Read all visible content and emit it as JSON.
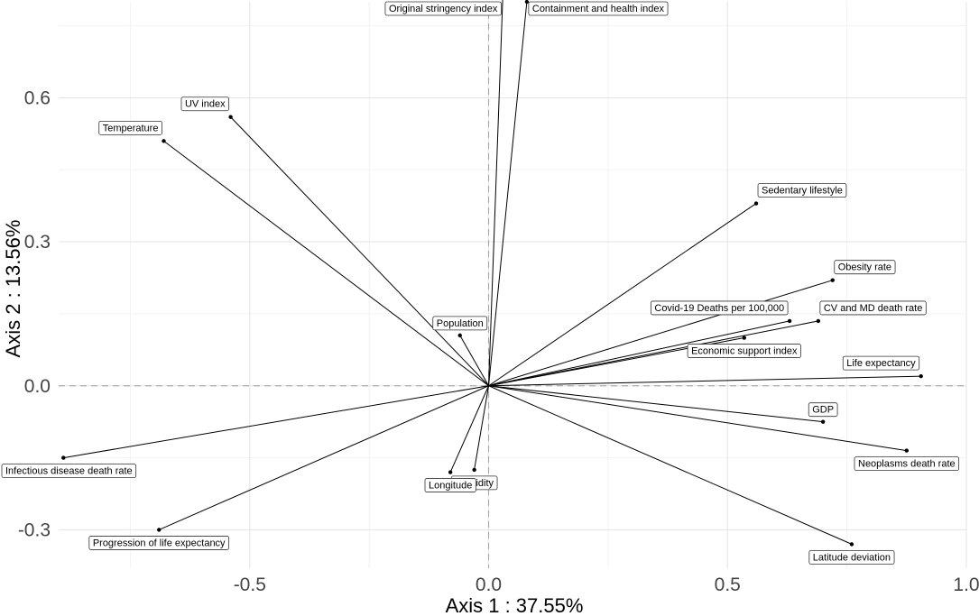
{
  "chart_data": {
    "type": "scatter",
    "subtype": "pca-variable-loadings",
    "title": "",
    "xlabel": "Axis 1 : 37.55%",
    "ylabel": "Axis 2 : 13.56%",
    "xlim": [
      -0.9,
      1.0
    ],
    "ylim": [
      -0.38,
      0.8
    ],
    "xticks": [
      -0.5,
      0.0,
      0.5,
      1.0
    ],
    "xtick_labels": [
      "-0.5",
      "0.0",
      "0.5",
      "1.0"
    ],
    "yticks": [
      -0.3,
      0.0,
      0.3,
      0.6
    ],
    "ytick_labels": [
      "-0.3",
      "0.0",
      "0.3",
      "0.6"
    ],
    "grid": true,
    "reference_lines": "dashed lines at x=0 and y=0",
    "series": [
      {
        "name": "Original stringency index",
        "x": 0.03,
        "y": 0.82,
        "label_anchor": "left"
      },
      {
        "name": "Containment and health index",
        "x": 0.08,
        "y": 0.8,
        "label_anchor": "right"
      },
      {
        "name": "UV index",
        "x": -0.54,
        "y": 0.56,
        "label_anchor": "left"
      },
      {
        "name": "Temperature",
        "x": -0.68,
        "y": 0.51,
        "label_anchor": "left"
      },
      {
        "name": "Sedentary lifestyle",
        "x": 0.56,
        "y": 0.38,
        "label_anchor": "right"
      },
      {
        "name": "Obesity rate",
        "x": 0.72,
        "y": 0.22,
        "label_anchor": "right"
      },
      {
        "name": "Covid-19 Deaths per 100,000",
        "x": 0.63,
        "y": 0.135,
        "label_anchor": "left"
      },
      {
        "name": "CV and MD death rate",
        "x": 0.69,
        "y": 0.135,
        "label_anchor": "right"
      },
      {
        "name": "Economic support index",
        "x": 0.535,
        "y": 0.1,
        "label_anchor": "below"
      },
      {
        "name": "Population",
        "x": -0.06,
        "y": 0.105,
        "label_anchor": "above"
      },
      {
        "name": "Life expectancy",
        "x": 0.905,
        "y": 0.02,
        "label_anchor": "left"
      },
      {
        "name": "GDP",
        "x": 0.7,
        "y": -0.075,
        "label_anchor": "above"
      },
      {
        "name": "Neoplasms death rate",
        "x": 0.875,
        "y": -0.135,
        "label_anchor": "below"
      },
      {
        "name": "Infectious disease death rate",
        "x": -0.89,
        "y": -0.15,
        "label_anchor": "below"
      },
      {
        "name": "Humidity",
        "x": -0.03,
        "y": -0.175,
        "label_anchor": "below"
      },
      {
        "name": "Longitude",
        "x": -0.08,
        "y": -0.18,
        "label_anchor": "below"
      },
      {
        "name": "Progression of life expectancy",
        "x": -0.69,
        "y": -0.3,
        "label_anchor": "below"
      },
      {
        "name": "Latitude deviation",
        "x": 0.76,
        "y": -0.33,
        "label_anchor": "below"
      }
    ]
  }
}
